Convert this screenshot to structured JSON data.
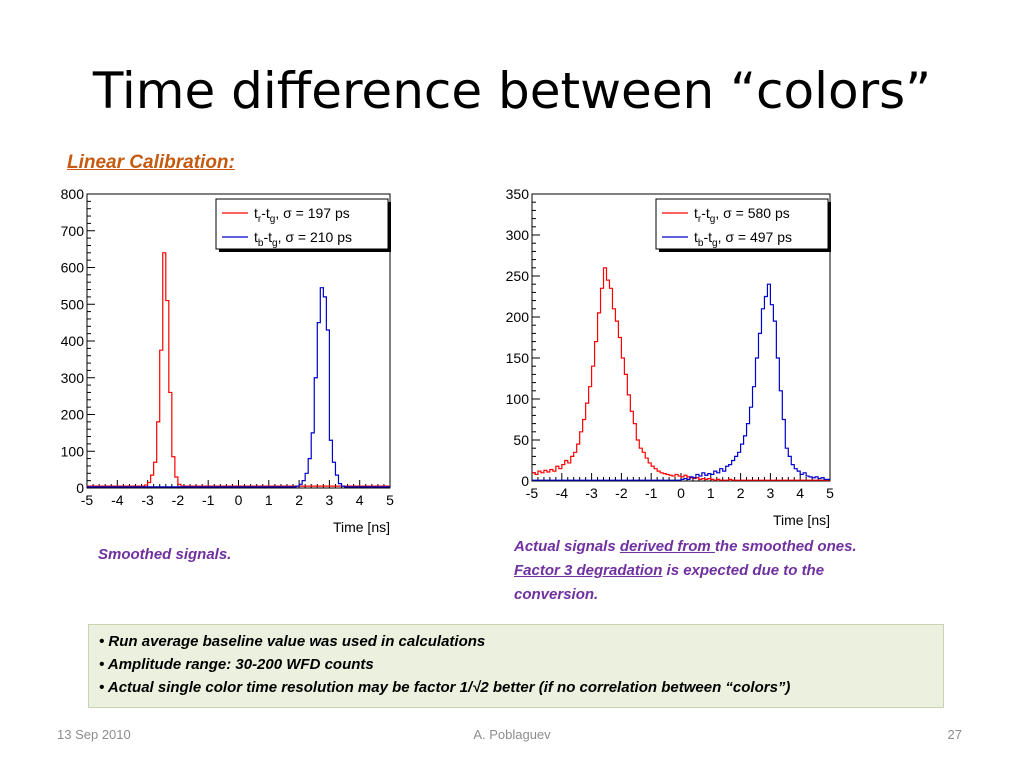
{
  "slide": {
    "title": "Time difference between “colors”",
    "subtitle": "Linear Calibration:"
  },
  "captions": {
    "left": "Smoothed signals.",
    "right_part1": "Actual signals ",
    "right_link1": "derived from ",
    "right_part2": "the smoothed ones. ",
    "right_link2": "Factor 3 degradation",
    "right_part3": " is expected due to the conversion."
  },
  "notes": [
    "Run average baseline value was used in calculations",
    "Amplitude range: 30-200 WFD counts",
    "Actual single color time resolution may be factor 1/√2  better (if no correlation between “colors”)"
  ],
  "footer": {
    "date": "13 Sep 2010",
    "author": "A. Poblaguev",
    "page": "27"
  },
  "colors": {
    "red": "#ff0000",
    "blue": "#0000cc",
    "caption": "#7030a0",
    "subtitle": "#c55a11"
  },
  "chart_data": [
    {
      "type": "line",
      "step": true,
      "xlabel": "Time [ns]",
      "ylabel": "",
      "xlim": [
        -5,
        5
      ],
      "ylim": [
        0,
        800
      ],
      "xticks": [
        -5,
        -4,
        -3,
        -2,
        -1,
        0,
        1,
        2,
        3,
        4,
        5
      ],
      "yticks": [
        0,
        100,
        200,
        300,
        400,
        500,
        600,
        700,
        800
      ],
      "legend_position": "top-right",
      "series": [
        {
          "name": "t_r-t_g",
          "legend_main": "t",
          "legend_sub1": "r",
          "legend_mid": "-t",
          "legend_sub2": "g",
          "legend_stat": ",  σ = 197 ps",
          "color": "red",
          "x": [
            -5.0,
            -4.9,
            -4.8,
            -4.7,
            -4.6,
            -4.5,
            -4.4,
            -4.3,
            -4.2,
            -4.1,
            -4.0,
            -3.9,
            -3.8,
            -3.7,
            -3.6,
            -3.5,
            -3.4,
            -3.3,
            -3.2,
            -3.1,
            -3.0,
            -2.9,
            -2.8,
            -2.7,
            -2.6,
            -2.5,
            -2.4,
            -2.3,
            -2.2,
            -2.1,
            -2.0,
            -1.9,
            -1.8,
            -1.7,
            -1.6,
            -1.5,
            -1.4,
            -1.3,
            -1.2,
            -1.1,
            -1.0,
            -0.9,
            -0.8,
            -0.7,
            -0.6,
            -0.5,
            -0.4,
            -0.3,
            -0.2,
            -0.1,
            0.0,
            0.1,
            0.2,
            0.3,
            0.4,
            0.5,
            0.6,
            0.7,
            0.8,
            0.9,
            1.0,
            1.1,
            1.2,
            1.3,
            1.4,
            1.5,
            1.6,
            1.7,
            1.8,
            1.9,
            2.0,
            2.1,
            2.2,
            2.3,
            2.4,
            2.5,
            2.6,
            2.7,
            2.8,
            2.9,
            3.0,
            3.1,
            3.2,
            3.3,
            3.4,
            3.5,
            3.6,
            3.7,
            3.8,
            3.9,
            4.0,
            4.1,
            4.2,
            4.3,
            4.4,
            4.5,
            4.6,
            4.7,
            4.8,
            4.9
          ],
          "values": [
            5,
            5,
            5,
            5,
            5,
            5,
            5,
            5,
            5,
            5,
            5,
            5,
            5,
            5,
            5,
            5,
            5,
            5,
            5,
            8,
            15,
            35,
            70,
            180,
            375,
            640,
            510,
            260,
            85,
            30,
            10,
            5,
            5,
            5,
            5,
            5,
            5,
            5,
            5,
            5,
            5,
            5,
            5,
            5,
            5,
            5,
            5,
            5,
            5,
            5,
            5,
            5,
            5,
            5,
            5,
            5,
            5,
            5,
            5,
            5,
            5,
            5,
            5,
            5,
            5,
            5,
            5,
            5,
            5,
            5,
            5,
            5,
            5,
            5,
            5,
            5,
            5,
            5,
            5,
            5,
            5,
            5,
            5,
            5,
            5,
            5,
            5,
            5,
            5,
            5,
            5,
            5,
            5,
            5,
            5,
            5,
            5,
            5,
            5,
            5
          ]
        },
        {
          "name": "t_b-t_g",
          "legend_main": "t",
          "legend_sub1": "b",
          "legend_mid": "-t",
          "legend_sub2": "g",
          "legend_stat": ",  σ = 210 ps",
          "color": "blue",
          "x": [
            -5.0,
            -4.9,
            -4.8,
            -4.7,
            -4.6,
            -4.5,
            -4.4,
            -4.3,
            -4.2,
            -4.1,
            -4.0,
            -3.9,
            -3.8,
            -3.7,
            -3.6,
            -3.5,
            -3.4,
            -3.3,
            -3.2,
            -3.1,
            -3.0,
            -2.9,
            -2.8,
            -2.7,
            -2.6,
            -2.5,
            -2.4,
            -2.3,
            -2.2,
            -2.1,
            -2.0,
            -1.9,
            -1.8,
            -1.7,
            -1.6,
            -1.5,
            -1.4,
            -1.3,
            -1.2,
            -1.1,
            -1.0,
            -0.9,
            -0.8,
            -0.7,
            -0.6,
            -0.5,
            -0.4,
            -0.3,
            -0.2,
            -0.1,
            0.0,
            0.1,
            0.2,
            0.3,
            0.4,
            0.5,
            0.6,
            0.7,
            0.8,
            0.9,
            1.0,
            1.1,
            1.2,
            1.3,
            1.4,
            1.5,
            1.6,
            1.7,
            1.8,
            1.9,
            2.0,
            2.1,
            2.2,
            2.3,
            2.4,
            2.5,
            2.6,
            2.7,
            2.8,
            2.9,
            3.0,
            3.1,
            3.2,
            3.3,
            3.4,
            3.5,
            3.6,
            3.7,
            3.8,
            3.9,
            4.0,
            4.1,
            4.2,
            4.3,
            4.4,
            4.5,
            4.6,
            4.7,
            4.8,
            4.9
          ],
          "values": [
            3,
            3,
            3,
            3,
            3,
            3,
            3,
            3,
            3,
            3,
            3,
            3,
            3,
            3,
            3,
            3,
            3,
            3,
            3,
            3,
            3,
            3,
            3,
            3,
            3,
            3,
            3,
            3,
            3,
            3,
            3,
            3,
            3,
            3,
            3,
            3,
            3,
            3,
            3,
            3,
            3,
            3,
            3,
            3,
            3,
            3,
            3,
            3,
            3,
            3,
            3,
            3,
            3,
            3,
            3,
            3,
            3,
            3,
            3,
            3,
            3,
            3,
            3,
            3,
            3,
            3,
            3,
            3,
            3,
            5,
            10,
            20,
            40,
            80,
            150,
            300,
            450,
            545,
            520,
            430,
            130,
            70,
            35,
            12,
            5,
            3,
            3,
            3,
            3,
            3,
            3,
            3,
            3,
            3,
            3,
            3,
            3,
            3,
            3,
            3
          ]
        }
      ]
    },
    {
      "type": "line",
      "step": true,
      "xlabel": "Time [ns]",
      "ylabel": "",
      "xlim": [
        -5,
        5
      ],
      "ylim": [
        0,
        350
      ],
      "xticks": [
        -5,
        -4,
        -3,
        -2,
        -1,
        0,
        1,
        2,
        3,
        4,
        5
      ],
      "yticks": [
        0,
        50,
        100,
        150,
        200,
        250,
        300,
        350
      ],
      "legend_position": "top-right",
      "series": [
        {
          "name": "t_r-t_g",
          "legend_main": "t",
          "legend_sub1": "r",
          "legend_mid": "-t",
          "legend_sub2": "g",
          "legend_stat": ",  σ = 580 ps",
          "color": "red",
          "x": [
            -5.0,
            -4.9,
            -4.8,
            -4.7,
            -4.6,
            -4.5,
            -4.4,
            -4.3,
            -4.2,
            -4.1,
            -4.0,
            -3.9,
            -3.8,
            -3.7,
            -3.6,
            -3.5,
            -3.4,
            -3.3,
            -3.2,
            -3.1,
            -3.0,
            -2.9,
            -2.8,
            -2.7,
            -2.6,
            -2.5,
            -2.4,
            -2.3,
            -2.2,
            -2.1,
            -2.0,
            -1.9,
            -1.8,
            -1.7,
            -1.6,
            -1.5,
            -1.4,
            -1.3,
            -1.2,
            -1.1,
            -1.0,
            -0.9,
            -0.8,
            -0.7,
            -0.6,
            -0.5,
            -0.4,
            -0.3,
            -0.2,
            -0.1,
            0.0,
            0.1,
            0.2,
            0.3,
            0.4,
            0.5,
            0.6,
            0.7,
            0.8,
            0.9,
            1.0,
            1.1,
            1.2,
            1.3,
            1.4,
            1.5,
            1.6,
            1.7,
            1.8,
            1.9,
            2.0,
            2.1,
            2.2,
            2.3,
            2.4,
            2.5,
            2.6,
            2.7,
            2.8,
            2.9,
            3.0,
            3.1,
            3.2,
            3.3,
            3.4,
            3.5,
            3.6,
            3.7,
            3.8,
            3.9,
            4.0,
            4.1,
            4.2,
            4.3,
            4.4,
            4.5,
            4.6,
            4.7,
            4.8,
            4.9
          ],
          "values": [
            10,
            8,
            12,
            10,
            13,
            11,
            14,
            12,
            18,
            15,
            20,
            25,
            22,
            30,
            35,
            45,
            60,
            75,
            95,
            115,
            140,
            170,
            205,
            235,
            260,
            245,
            235,
            210,
            195,
            175,
            150,
            130,
            105,
            85,
            70,
            50,
            40,
            35,
            28,
            22,
            18,
            15,
            12,
            10,
            9,
            8,
            7,
            6,
            8,
            6,
            5,
            7,
            5,
            4,
            3,
            4,
            2,
            3,
            2,
            3,
            2,
            1,
            2,
            1,
            1,
            1,
            2,
            1,
            1,
            1,
            1,
            1,
            1,
            1,
            1,
            1,
            1,
            1,
            1,
            1,
            1,
            1,
            1,
            1,
            1,
            1,
            1,
            1,
            1,
            1,
            1,
            1,
            1,
            1,
            1,
            1,
            1,
            1,
            1,
            1
          ]
        },
        {
          "name": "t_b-t_g",
          "legend_main": "t",
          "legend_sub1": "b",
          "legend_mid": "-t",
          "legend_sub2": "g",
          "legend_stat": ",  σ = 497 ps",
          "color": "blue",
          "x": [
            -5.0,
            -4.9,
            -4.8,
            -4.7,
            -4.6,
            -4.5,
            -4.4,
            -4.3,
            -4.2,
            -4.1,
            -4.0,
            -3.9,
            -3.8,
            -3.7,
            -3.6,
            -3.5,
            -3.4,
            -3.3,
            -3.2,
            -3.1,
            -3.0,
            -2.9,
            -2.8,
            -2.7,
            -2.6,
            -2.5,
            -2.4,
            -2.3,
            -2.2,
            -2.1,
            -2.0,
            -1.9,
            -1.8,
            -1.7,
            -1.6,
            -1.5,
            -1.4,
            -1.3,
            -1.2,
            -1.1,
            -1.0,
            -0.9,
            -0.8,
            -0.7,
            -0.6,
            -0.5,
            -0.4,
            -0.3,
            -0.2,
            -0.1,
            0.0,
            0.1,
            0.2,
            0.3,
            0.4,
            0.5,
            0.6,
            0.7,
            0.8,
            0.9,
            1.0,
            1.1,
            1.2,
            1.3,
            1.4,
            1.5,
            1.6,
            1.7,
            1.8,
            1.9,
            2.0,
            2.1,
            2.2,
            2.3,
            2.4,
            2.5,
            2.6,
            2.7,
            2.8,
            2.9,
            3.0,
            3.1,
            3.2,
            3.3,
            3.4,
            3.5,
            3.6,
            3.7,
            3.8,
            3.9,
            4.0,
            4.1,
            4.2,
            4.3,
            4.4,
            4.5,
            4.6,
            4.7,
            4.8,
            4.9
          ],
          "values": [
            1,
            1,
            1,
            1,
            1,
            1,
            1,
            1,
            1,
            1,
            1,
            1,
            1,
            1,
            1,
            1,
            1,
            1,
            1,
            1,
            1,
            1,
            1,
            1,
            1,
            1,
            1,
            1,
            1,
            1,
            1,
            1,
            1,
            1,
            1,
            1,
            1,
            1,
            1,
            1,
            1,
            1,
            1,
            1,
            1,
            1,
            1,
            1,
            1,
            1,
            2,
            3,
            2,
            5,
            4,
            8,
            6,
            10,
            7,
            9,
            8,
            12,
            10,
            15,
            12,
            18,
            20,
            25,
            30,
            35,
            45,
            55,
            70,
            90,
            115,
            150,
            180,
            210,
            225,
            240,
            215,
            195,
            150,
            110,
            75,
            40,
            30,
            20,
            15,
            12,
            8,
            10,
            6,
            5,
            4,
            5,
            3,
            4,
            2,
            2
          ]
        }
      ]
    }
  ]
}
